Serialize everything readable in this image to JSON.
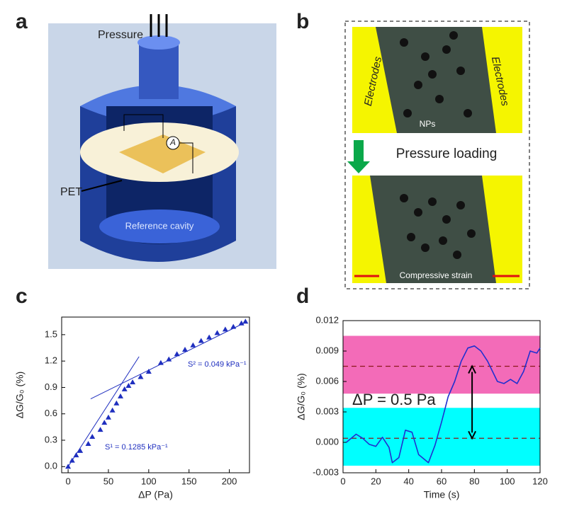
{
  "panels": {
    "a": {
      "label": "a",
      "pressure": "Pressure",
      "ammeter": "A",
      "pet": "PET",
      "cavity": "Reference cavity"
    },
    "b": {
      "label": "b",
      "electrodes_left": "Electrodes",
      "electrodes_right": "Electrodes",
      "nps": "NPs",
      "loading": "Pressure loading",
      "strain": "Compressive strain"
    }
  },
  "chart_data": [
    {
      "type": "scatter",
      "panel_label": "c",
      "x_label": "ΔP (Pa)",
      "y_label": "ΔG/G₀ (%)",
      "annotations": [
        "S¹ = 0.1285 kPa⁻¹",
        "S² = 0.049 kPa⁻¹"
      ],
      "xlim": [
        -8,
        225
      ],
      "xticks": [
        0,
        50,
        100,
        150,
        200
      ],
      "ylim": [
        -0.07,
        1.7
      ],
      "yticks": [
        {
          "value": 0,
          "label": "0.0"
        },
        0.3,
        0.6,
        0.9,
        1.2,
        1.5
      ],
      "series": [
        {
          "style": "points",
          "color": "#1f2fbf",
          "x": [
            0,
            5,
            10,
            15,
            25,
            30,
            40,
            45,
            50,
            55,
            60,
            65,
            70,
            75,
            80,
            90,
            100,
            115,
            125,
            135,
            145,
            155,
            165,
            175,
            185,
            195,
            205,
            215,
            220
          ],
          "values": [
            0,
            0.07,
            0.13,
            0.18,
            0.26,
            0.34,
            0.42,
            0.5,
            0.56,
            0.64,
            0.72,
            0.8,
            0.88,
            0.92,
            0.96,
            1.02,
            1.08,
            1.18,
            1.22,
            1.28,
            1.33,
            1.38,
            1.43,
            1.47,
            1.52,
            1.56,
            1.59,
            1.63,
            1.65
          ]
        },
        {
          "style": "line",
          "color": "#1f2fbf",
          "x": [
            0,
            88
          ],
          "values": [
            0,
            1.25
          ]
        },
        {
          "style": "line",
          "color": "#1f2fbf",
          "x": [
            28,
            220
          ],
          "values": [
            0.77,
            1.64
          ]
        }
      ]
    },
    {
      "type": "line",
      "panel_label": "d",
      "x_label": "Time (s)",
      "y_label": "ΔG/G₀ (%)",
      "annotations": [
        "ΔP = 0.5 Pa"
      ],
      "xlim": [
        0,
        120
      ],
      "xticks": [
        0,
        20,
        40,
        60,
        80,
        100,
        120
      ],
      "ylim": [
        -0.003,
        0.012
      ],
      "yticks": [
        -0.003,
        {
          "value": 0,
          "label": "0.000"
        },
        0.003,
        0.006,
        0.009,
        0.012
      ],
      "bands": [
        {
          "from": 0.0048,
          "to": 0.0105,
          "color": "#f36bb8"
        },
        {
          "from": -0.0023,
          "to": 0.0034,
          "color": "#00ffff"
        }
      ],
      "reference_lines": [
        0.0075,
        0.0004
      ],
      "series": [
        {
          "color": "#2030d0",
          "x": [
            2,
            8,
            12,
            16,
            20,
            24,
            28,
            30,
            34,
            38,
            42,
            46,
            52,
            56,
            60,
            64,
            68,
            72,
            76,
            80,
            84,
            88,
            94,
            98,
            102,
            106,
            110,
            114,
            118,
            120
          ],
          "values": [
            0.0,
            0.0008,
            0.0004,
            -0.0002,
            -0.0004,
            0.0005,
            -0.0005,
            -0.002,
            -0.0015,
            0.0012,
            0.001,
            -0.0012,
            -0.002,
            -0.0003,
            0.002,
            0.0045,
            0.006,
            0.008,
            0.0093,
            0.0095,
            0.009,
            0.008,
            0.006,
            0.0058,
            0.0062,
            0.0058,
            0.007,
            0.009,
            0.0088,
            0.0093
          ]
        }
      ]
    }
  ]
}
